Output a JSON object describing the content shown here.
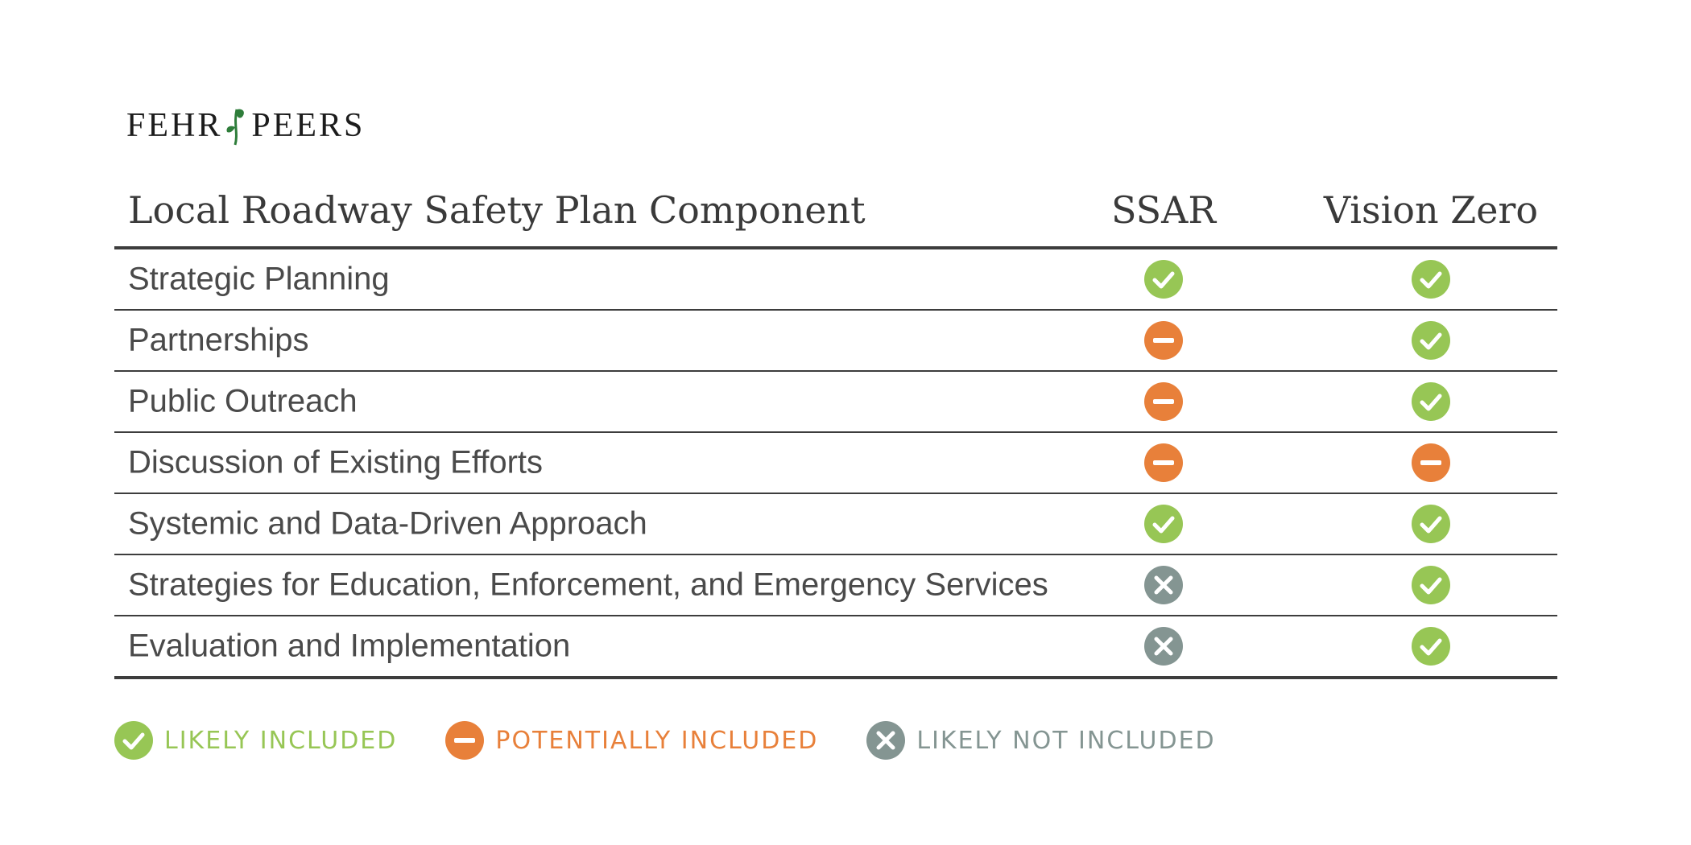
{
  "logo": {
    "left_word": "FEHR",
    "right_word": "PEERS",
    "mark": "leaf-icon"
  },
  "table": {
    "headers": {
      "component": "Local Roadway Safety Plan Component",
      "ssar": "SSAR",
      "vision_zero": "Vision Zero"
    },
    "rows": [
      {
        "label": "Strategic Planning",
        "ssar": "likely",
        "vision_zero": "likely"
      },
      {
        "label": "Partnerships",
        "ssar": "potentially",
        "vision_zero": "likely"
      },
      {
        "label": "Public Outreach",
        "ssar": "potentially",
        "vision_zero": "likely"
      },
      {
        "label": "Discussion of Existing Efforts",
        "ssar": "potentially",
        "vision_zero": "potentially"
      },
      {
        "label": "Systemic and Data-Driven Approach",
        "ssar": "likely",
        "vision_zero": "likely"
      },
      {
        "label": "Strategies for Education, Enforcement, and Emergency Services",
        "ssar": "not",
        "vision_zero": "likely"
      },
      {
        "label": "Evaluation and Implementation",
        "ssar": "not",
        "vision_zero": "likely"
      }
    ]
  },
  "legend": [
    {
      "key": "likely",
      "label": "LIKELY INCLUDED",
      "icon": "check-circle-icon",
      "color": "#97c655"
    },
    {
      "key": "potentially",
      "label": "POTENTIALLY INCLUDED",
      "icon": "minus-circle-icon",
      "color": "#e8803a"
    },
    {
      "key": "not",
      "label": "LIKELY NOT INCLUDED",
      "icon": "x-circle-icon",
      "color": "#849592"
    }
  ],
  "colors": {
    "logo_leaf": "#2e7d3a",
    "text": "#4a4a4a",
    "rule": "#3d3d3d"
  }
}
